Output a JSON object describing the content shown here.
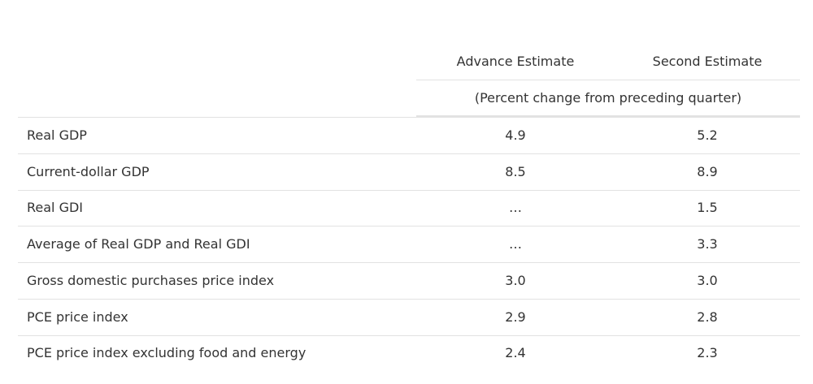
{
  "table": {
    "header": [
      "Advance Estimate",
      "Second Estimate"
    ],
    "subheader": "(Percent change from preceding quarter)",
    "rows": [
      [
        "Real GDP",
        "4.9",
        "5.2"
      ],
      [
        "Current-dollar GDP",
        "8.5",
        "8.9"
      ],
      [
        "Real GDI",
        "…",
        "1.5"
      ],
      [
        "Average of Real GDP and Real GDI",
        "…",
        "3.3"
      ],
      [
        "Gross domestic purchases price index",
        "3.0",
        "3.0"
      ],
      [
        "PCE price index",
        "2.9",
        "2.8"
      ],
      [
        "PCE price index excluding food and energy",
        "2.4",
        "2.3"
      ]
    ]
  }
}
